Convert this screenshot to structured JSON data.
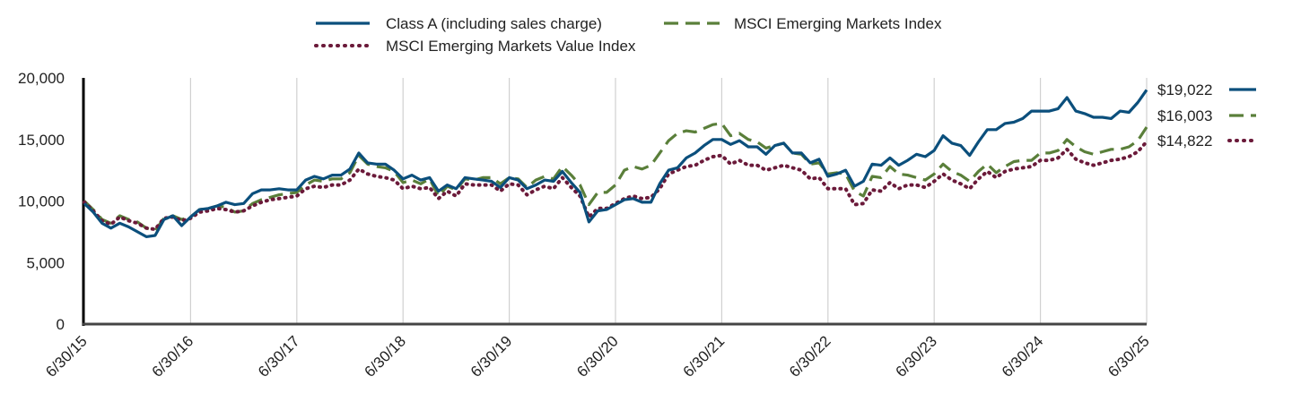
{
  "colors": {
    "class_a": "#0b4f7c",
    "em_index": "#5a7f3a",
    "em_value": "#6b1a3a",
    "grid": "#d0d0d0",
    "axis": "#000000"
  },
  "chart_data": {
    "type": "line",
    "xlabel": "",
    "ylabel": "",
    "ylim": [
      0,
      20000
    ],
    "y_ticks": [
      "0",
      "5,000",
      "10,000",
      "15,000",
      "20,000"
    ],
    "y_tick_values": [
      0,
      5000,
      10000,
      15000,
      20000
    ],
    "x_ticks": [
      "6/30/15",
      "6/30/16",
      "6/30/17",
      "6/30/18",
      "6/30/19",
      "6/30/20",
      "6/30/21",
      "6/30/22",
      "6/30/23",
      "6/30/24",
      "6/30/25"
    ],
    "grid": "vertical",
    "legend_position": "top",
    "series": [
      {
        "name": "Class A (including sales charge)",
        "end_label": "$19,022",
        "style": "solid",
        "values": [
          9800,
          9100,
          8200,
          7800,
          8200,
          7900,
          7500,
          7100,
          7200,
          8500,
          8800,
          8000,
          8700,
          9300,
          9400,
          9600,
          9900,
          9700,
          9800,
          10600,
          10900,
          10900,
          11000,
          10900,
          10900,
          11700,
          12000,
          11800,
          12100,
          12100,
          12600,
          13900,
          13100,
          13000,
          13000,
          12500,
          11800,
          12100,
          11700,
          11900,
          10800,
          11300,
          11000,
          11900,
          11800,
          11700,
          11600,
          11100,
          11900,
          11700,
          11000,
          11300,
          11700,
          11600,
          12400,
          11500,
          10700,
          8300,
          9200,
          9300,
          9700,
          10100,
          10200,
          9900,
          9900,
          11400,
          12500,
          12700,
          13500,
          13900,
          14500,
          15000,
          15000,
          14600,
          14900,
          14400,
          14400,
          13800,
          14500,
          14700,
          13900,
          13900,
          13100,
          13400,
          12000,
          12200,
          12500,
          11200,
          11600,
          13000,
          12900,
          13500,
          12900,
          13300,
          13800,
          13600,
          14100,
          15300,
          14700,
          14500,
          13700,
          14800,
          15800,
          15800,
          16300,
          16400,
          16700,
          17300,
          17300,
          17300,
          17500,
          18400,
          17300,
          17100,
          16800,
          16800,
          16700,
          17300,
          17200,
          18000,
          19022
        ]
      },
      {
        "name": "MSCI Emerging Markets Index",
        "end_label": "$16,003",
        "style": "dashed",
        "values": [
          10000,
          9300,
          8500,
          8200,
          8800,
          8500,
          8300,
          7800,
          7600,
          8600,
          8800,
          8500,
          8700,
          9300,
          9400,
          9600,
          9500,
          9100,
          9200,
          9800,
          10100,
          10300,
          10500,
          10600,
          10700,
          11300,
          11700,
          11600,
          11800,
          11800,
          12300,
          13700,
          13000,
          12800,
          12700,
          12400,
          11500,
          11700,
          11400,
          11800,
          10400,
          11200,
          10900,
          11800,
          11700,
          11900,
          11900,
          11400,
          11900,
          11800,
          11100,
          11700,
          12000,
          11800,
          12800,
          12100,
          11300,
          9700,
          10700,
          10700,
          11300,
          12500,
          12800,
          12600,
          12900,
          13900,
          14900,
          15500,
          15700,
          15600,
          15900,
          16200,
          16300,
          15300,
          15500,
          15000,
          14800,
          14300,
          14500,
          14700,
          13900,
          13800,
          13000,
          13100,
          12200,
          12300,
          12200,
          10800,
          10400,
          12000,
          11900,
          12800,
          12200,
          12100,
          11900,
          11700,
          12200,
          13000,
          12400,
          12100,
          11600,
          12400,
          13000,
          12300,
          12800,
          13200,
          13300,
          13300,
          13900,
          13900,
          14100,
          15000,
          14400,
          14000,
          13800,
          14000,
          14200,
          14200,
          14400,
          14900,
          16003
        ]
      },
      {
        "name": "MSCI Emerging Markets Value Index",
        "end_label": "$14,822",
        "style": "dotted",
        "values": [
          9900,
          9200,
          8400,
          8100,
          8700,
          8400,
          8200,
          7800,
          7700,
          8600,
          8700,
          8400,
          8600,
          9100,
          9200,
          9400,
          9300,
          9100,
          9200,
          9600,
          9900,
          10100,
          10200,
          10300,
          10400,
          11000,
          11200,
          11100,
          11300,
          11300,
          11700,
          12600,
          12200,
          12000,
          11900,
          11700,
          11000,
          11200,
          11000,
          11100,
          10200,
          10800,
          10400,
          11400,
          11300,
          11300,
          11300,
          10800,
          11400,
          11300,
          10500,
          10900,
          11200,
          11000,
          11900,
          11100,
          10400,
          8700,
          9400,
          9400,
          9800,
          10200,
          10400,
          10200,
          10300,
          11000,
          12200,
          12500,
          12800,
          12900,
          13300,
          13600,
          13700,
          13000,
          13300,
          12900,
          12900,
          12500,
          12700,
          12900,
          12700,
          12500,
          11800,
          11900,
          11000,
          11000,
          11000,
          9700,
          9800,
          10900,
          10800,
          11500,
          11000,
          11300,
          11300,
          11100,
          11600,
          12200,
          11700,
          11400,
          11000,
          11800,
          12400,
          11900,
          12400,
          12600,
          12700,
          12800,
          13300,
          13300,
          13500,
          14200,
          13400,
          13100,
          12900,
          13100,
          13300,
          13400,
          13600,
          14000,
          14822
        ]
      }
    ]
  }
}
